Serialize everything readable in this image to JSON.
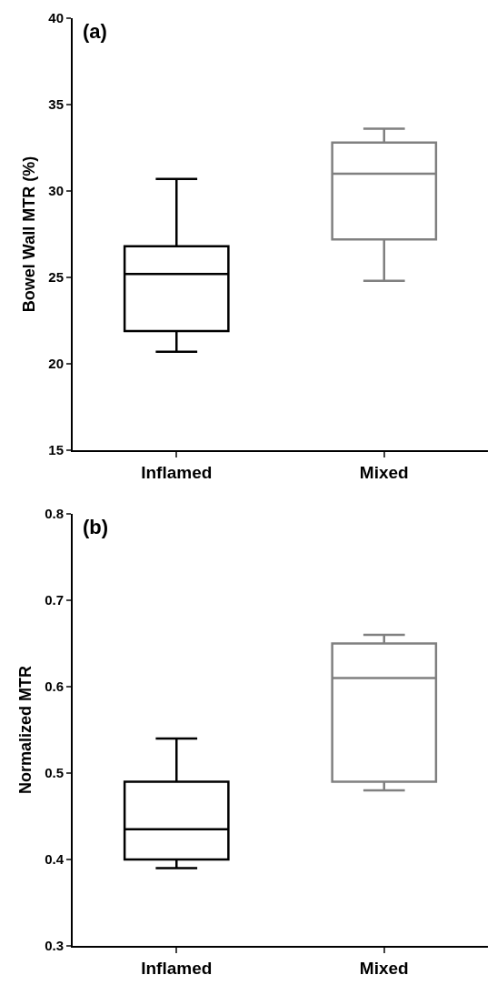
{
  "chart_data": [
    {
      "type": "box",
      "title": "(a)",
      "ylabel": "Bowel Wall MTR (%)",
      "categories": [
        "Inflamed",
        "Mixed"
      ],
      "colors": [
        "#000000",
        "#808080"
      ],
      "boxes": [
        {
          "low": 20.7,
          "q1": 21.9,
          "median": 25.2,
          "q3": 26.8,
          "high": 30.7
        },
        {
          "low": 24.8,
          "q1": 27.2,
          "median": 31.0,
          "q3": 32.8,
          "high": 33.6
        }
      ],
      "ylim": [
        15,
        40
      ],
      "yticks": [
        15,
        20,
        25,
        30,
        35,
        40
      ]
    },
    {
      "type": "box",
      "title": "(b)",
      "ylabel": "Normalized MTR",
      "categories": [
        "Inflamed",
        "Mixed"
      ],
      "colors": [
        "#000000",
        "#808080"
      ],
      "boxes": [
        {
          "low": 0.39,
          "q1": 0.4,
          "median": 0.435,
          "q3": 0.49,
          "high": 0.54
        },
        {
          "low": 0.48,
          "q1": 0.49,
          "median": 0.61,
          "q3": 0.65,
          "high": 0.66
        }
      ],
      "ylim": [
        0.3,
        0.8
      ],
      "yticks": [
        0.3,
        0.4,
        0.5,
        0.6,
        0.7,
        0.8
      ]
    }
  ]
}
